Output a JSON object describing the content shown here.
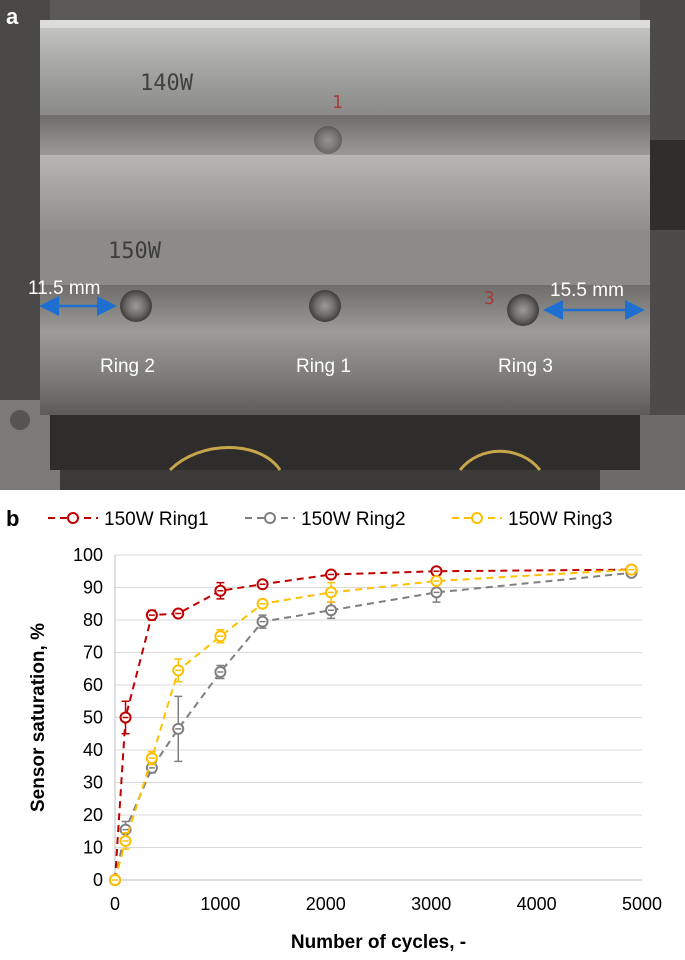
{
  "panel_a": {
    "letter": "a",
    "markings": {
      "top": "140W",
      "bottom": "150W",
      "num1": "1",
      "num3": "3"
    },
    "rings": [
      "Ring 2",
      "Ring 1",
      "Ring 3"
    ],
    "dims": {
      "left": "11.5 mm",
      "right": "15.5 mm"
    }
  },
  "panel_b": {
    "letter": "b"
  },
  "chart_data": {
    "type": "line",
    "xlabel": "Number of cycles, -",
    "ylabel": "Sensor saturation, %",
    "xlim": [
      0,
      5000
    ],
    "ylim": [
      0,
      100
    ],
    "xticks": [
      0,
      1000,
      2000,
      3000,
      4000,
      5000
    ],
    "yticks": [
      0,
      10,
      20,
      30,
      40,
      50,
      60,
      70,
      80,
      90,
      100
    ],
    "grid": "horizontal",
    "legend": "top",
    "series": [
      {
        "name": "150W Ring1",
        "color": "#c00000",
        "x": [
          0,
          100,
          350,
          600,
          1000,
          1400,
          2050,
          3050,
          4900
        ],
        "y": [
          0,
          50,
          81.5,
          82,
          89,
          91,
          94,
          95,
          95.5
        ],
        "err": [
          0,
          5,
          1.5,
          1,
          2.5,
          1,
          1,
          0.5,
          0.5
        ]
      },
      {
        "name": "150W Ring2",
        "color": "#7f7f7f",
        "x": [
          0,
          100,
          350,
          600,
          1000,
          1400,
          2050,
          3050,
          4900
        ],
        "y": [
          0,
          15.5,
          34.5,
          46.5,
          64,
          79.5,
          83,
          88.5,
          94.5
        ],
        "err": [
          0,
          2.5,
          1.5,
          10,
          2,
          2,
          2.5,
          3,
          1
        ]
      },
      {
        "name": "150W Ring3",
        "color": "#ffc000",
        "x": [
          0,
          100,
          350,
          600,
          1000,
          1400,
          2050,
          3050,
          4900
        ],
        "y": [
          0,
          12,
          37.5,
          64.5,
          75,
          85,
          88.5,
          92,
          95.5
        ],
        "err": [
          0,
          2.5,
          2,
          3.5,
          2,
          1,
          3,
          1,
          1
        ]
      }
    ]
  }
}
